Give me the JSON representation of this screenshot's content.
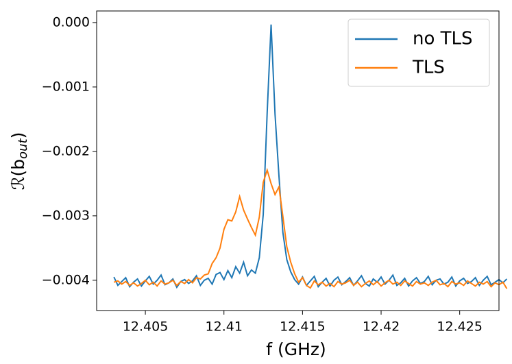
{
  "chart_data": {
    "type": "line",
    "xlabel": "f (GHz)",
    "ylabel": [
      "ℛ(b",
      "out",
      ")"
    ],
    "x": [
      12.403,
      12.40325,
      12.4035,
      12.40375,
      12.404,
      12.40425,
      12.4045,
      12.40475,
      12.405,
      12.40525,
      12.4055,
      12.40575,
      12.406,
      12.40625,
      12.4065,
      12.40675,
      12.407,
      12.40725,
      12.4075,
      12.40775,
      12.408,
      12.40825,
      12.4085,
      12.40875,
      12.409,
      12.40925,
      12.4095,
      12.40975,
      12.41,
      12.41025,
      12.4105,
      12.41075,
      12.411,
      12.41125,
      12.4115,
      12.41175,
      12.412,
      12.41225,
      12.4125,
      12.41275,
      12.413,
      12.41325,
      12.4135,
      12.41375,
      12.414,
      12.41425,
      12.4145,
      12.41475,
      12.415,
      12.41525,
      12.4155,
      12.41575,
      12.416,
      12.41625,
      12.4165,
      12.41675,
      12.417,
      12.41725,
      12.4175,
      12.41775,
      12.418,
      12.41825,
      12.4185,
      12.41875,
      12.419,
      12.41925,
      12.4195,
      12.41975,
      12.42,
      12.42025,
      12.4205,
      12.42075,
      12.421,
      12.42125,
      12.4215,
      12.42175,
      12.422,
      12.42225,
      12.4225,
      12.42275,
      12.423,
      12.42325,
      12.4235,
      12.42375,
      12.424,
      12.42425,
      12.4245,
      12.42475,
      12.425,
      12.42525,
      12.4255,
      12.42575,
      12.426,
      12.42625,
      12.4265,
      12.42675,
      12.427,
      12.42725,
      12.4275,
      12.42775,
      12.428
    ],
    "series": [
      {
        "name": "no TLS",
        "color": "#1f77b4",
        "values": [
          -0.00395,
          -0.00408,
          -0.00402,
          -0.00396,
          -0.0041,
          -0.00403,
          -0.00398,
          -0.00409,
          -0.00401,
          -0.00394,
          -0.00406,
          -0.004,
          -0.00392,
          -0.00407,
          -0.00404,
          -0.00398,
          -0.00411,
          -0.00402,
          -0.00399,
          -0.00405,
          -0.00401,
          -0.00393,
          -0.00408,
          -0.004,
          -0.00397,
          -0.00406,
          -0.00391,
          -0.00388,
          -0.00399,
          -0.00385,
          -0.00396,
          -0.00379,
          -0.00389,
          -0.00372,
          -0.00393,
          -0.00384,
          -0.00389,
          -0.00365,
          -0.00298,
          -0.0014,
          -3e-05,
          -0.00142,
          -0.00238,
          -0.00326,
          -0.00368,
          -0.00387,
          -0.00399,
          -0.00406,
          -0.00395,
          -0.00408,
          -0.00401,
          -0.00394,
          -0.0041,
          -0.00403,
          -0.00397,
          -0.00409,
          -0.004,
          -0.00395,
          -0.00407,
          -0.00402,
          -0.00396,
          -0.00408,
          -0.00401,
          -0.00393,
          -0.00405,
          -0.00409,
          -0.00398,
          -0.00403,
          -0.00395,
          -0.00406,
          -0.004,
          -0.00392,
          -0.00408,
          -0.00404,
          -0.00397,
          -0.00409,
          -0.00401,
          -0.00396,
          -0.00405,
          -0.00402,
          -0.00394,
          -0.00407,
          -0.004,
          -0.00398,
          -0.00406,
          -0.00403,
          -0.00395,
          -0.00409,
          -0.00401,
          -0.00397,
          -0.00405,
          -0.00402,
          -0.00396,
          -0.00408,
          -0.004,
          -0.00394,
          -0.00407,
          -0.00403,
          -0.00399,
          -0.00404,
          -0.00398
        ]
      },
      {
        "name": "TLS",
        "color": "#ff7f0e",
        "values": [
          -0.00403,
          -0.00401,
          -0.00406,
          -0.00402,
          -0.00408,
          -0.00404,
          -0.00409,
          -0.00405,
          -0.004,
          -0.00407,
          -0.00403,
          -0.00409,
          -0.00401,
          -0.00406,
          -0.00404,
          -0.004,
          -0.00408,
          -0.00402,
          -0.00405,
          -0.00399,
          -0.00404,
          -0.00396,
          -0.00398,
          -0.00392,
          -0.0039,
          -0.00374,
          -0.00365,
          -0.0035,
          -0.00321,
          -0.00306,
          -0.00308,
          -0.00294,
          -0.0027,
          -0.00291,
          -0.00305,
          -0.00318,
          -0.0033,
          -0.00302,
          -0.00248,
          -0.00229,
          -0.0025,
          -0.00267,
          -0.00255,
          -0.00301,
          -0.00348,
          -0.00372,
          -0.0039,
          -0.00403,
          -0.00396,
          -0.00408,
          -0.00412,
          -0.00401,
          -0.00407,
          -0.00403,
          -0.00409,
          -0.00405,
          -0.0041,
          -0.00402,
          -0.00406,
          -0.00404,
          -0.004,
          -0.00408,
          -0.00403,
          -0.0041,
          -0.00405,
          -0.00401,
          -0.00407,
          -0.00402,
          -0.00409,
          -0.00404,
          -0.004,
          -0.00406,
          -0.00403,
          -0.00408,
          -0.00401,
          -0.00405,
          -0.00409,
          -0.00402,
          -0.00406,
          -0.00404,
          -0.00408,
          -0.00403,
          -0.004,
          -0.00407,
          -0.00405,
          -0.0041,
          -0.00402,
          -0.00406,
          -0.00404,
          -0.00408,
          -0.00401,
          -0.00405,
          -0.00409,
          -0.00403,
          -0.00406,
          -0.00402,
          -0.0041,
          -0.00404,
          -0.00407,
          -0.00403,
          -0.00413
        ]
      }
    ],
    "xlim": [
      12.4019,
      12.4275
    ],
    "ylim": [
      -0.00447,
      0.00018
    ],
    "xticks": [
      12.405,
      12.41,
      12.415,
      12.42,
      12.425
    ],
    "xticks_labels_note_free": null,
    "yticks": [
      {
        "value": 0,
        "label": "0.000"
      },
      {
        "value": -0.001,
        "label": "−0.001"
      },
      {
        "value": -0.002,
        "label": "−0.002"
      },
      {
        "value": -0.003,
        "label": "−0.003"
      },
      {
        "value": -0.004,
        "label": "−0.004"
      }
    ],
    "legend": "upper right",
    "grid": false
  }
}
